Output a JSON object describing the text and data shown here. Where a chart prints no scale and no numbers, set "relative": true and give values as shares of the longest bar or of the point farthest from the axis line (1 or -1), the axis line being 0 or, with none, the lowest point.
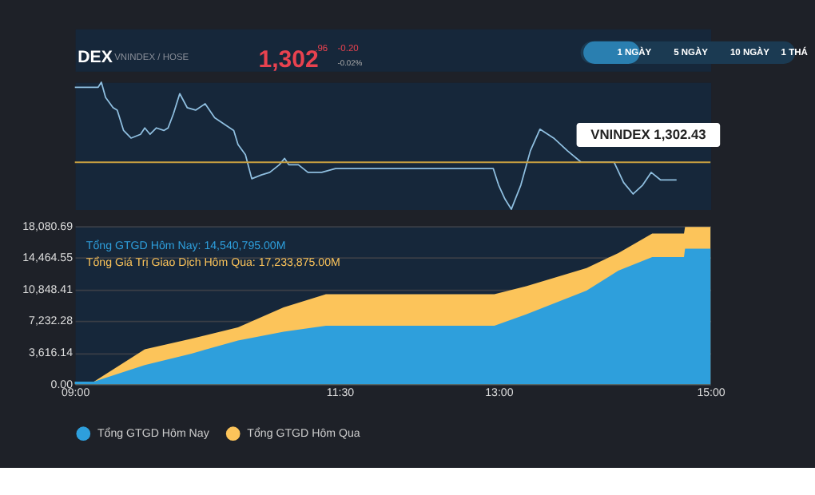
{
  "chart_data": [
    {
      "type": "line",
      "title": "DEX",
      "subtitle": "VNINDEX / HOSE",
      "relative": true,
      "xlim": [
        9,
        15
      ],
      "annotations": [
        "1,302",
        ".96",
        "-0.20",
        "-0.02%",
        "1 NGÀY",
        "5 NGÀY",
        "10 NGÀY",
        "1 THÁ",
        {
          "text": "VNINDEX 1,302.43",
          "x": 14.68,
          "y": 0.23
        }
      ],
      "x": [
        9.0,
        9.22,
        9.25,
        9.29,
        9.36,
        9.4,
        9.46,
        9.53,
        9.62,
        9.66,
        9.71,
        9.77,
        9.84,
        9.88,
        9.93,
        9.99,
        10.06,
        10.14,
        10.23,
        10.32,
        10.41,
        10.5,
        10.54,
        10.61,
        10.67,
        10.76,
        10.84,
        10.93,
        10.98,
        11.02,
        11.11,
        11.2,
        11.33,
        11.46,
        12.95,
        13.0,
        13.06,
        13.12,
        13.21,
        13.3,
        13.39,
        13.52,
        13.65,
        13.78,
        14.09,
        14.18,
        14.27,
        14.36,
        14.44,
        14.53,
        14.68
      ],
      "series": [
        {
          "color": "#8fbfe0",
          "values": [
            0.96,
            0.96,
            1.0,
            0.88,
            0.8,
            0.78,
            0.62,
            0.56,
            0.59,
            0.64,
            0.59,
            0.64,
            0.62,
            0.64,
            0.75,
            0.91,
            0.8,
            0.78,
            0.83,
            0.72,
            0.67,
            0.62,
            0.51,
            0.43,
            0.24,
            0.27,
            0.29,
            0.35,
            0.4,
            0.35,
            0.35,
            0.29,
            0.29,
            0.32,
            0.32,
            0.19,
            0.08,
            0.0,
            0.19,
            0.46,
            0.63,
            0.56,
            0.46,
            0.37,
            0.37,
            0.21,
            0.12,
            0.19,
            0.29,
            0.23,
            0.23
          ]
        }
      ],
      "ref_lines": [
        {
          "axis": "y",
          "value": 0.37,
          "label": null,
          "color": "#c9a040"
        }
      ]
    },
    {
      "type": "area",
      "xlim": [
        9,
        15
      ],
      "ylim": [
        0,
        18080.69
      ],
      "grid": "y",
      "legend": "bottom",
      "xticks": [
        {
          "value": 9,
          "label": "09:00"
        },
        {
          "value": 11.5,
          "label": "11:30"
        },
        {
          "value": 13,
          "label": "13:00"
        },
        {
          "value": 15,
          "label": "15:00"
        }
      ],
      "yticks": [
        {
          "value": 0,
          "label": "0.00"
        },
        {
          "value": 3616.14,
          "label": "3,616.14"
        },
        {
          "value": 7232.28,
          "label": "7,232.28"
        },
        {
          "value": 10848.41,
          "label": "10,848.41"
        },
        {
          "value": 14464.55,
          "label": "14,464.55"
        },
        {
          "value": 18080.69,
          "label": "18,080.69"
        }
      ],
      "annotations": [
        "Tổng GTGD Hôm Nay: 14,540,795.00M",
        "Tổng Giá Trị Giao Dịch Hôm Qua: 17,233,875.00M"
      ],
      "x": [
        9.0,
        9.18,
        9.66,
        10.1,
        10.54,
        10.97,
        11.37,
        11.99,
        12.96,
        13.26,
        13.83,
        14.13,
        14.45,
        14.75,
        14.76,
        15.0
      ],
      "series": [
        {
          "name": "Tổng GTGD Hôm Nay",
          "color": "#2e9fdc",
          "values": [
            300,
            300,
            2200,
            3500,
            5000,
            6000,
            6700,
            6700,
            6700,
            8000,
            10700,
            13000,
            14540.795,
            14540.795,
            15500,
            15500
          ]
        },
        {
          "name": "Tổng GTGD Hôm Qua",
          "color": "#fcc45a",
          "values": [
            300,
            300,
            4000,
            5200,
            6500,
            8800,
            10300,
            10300,
            10300,
            11200,
            13300,
            15000,
            17233.875,
            17233.875,
            18000,
            18000
          ]
        }
      ]
    }
  ]
}
